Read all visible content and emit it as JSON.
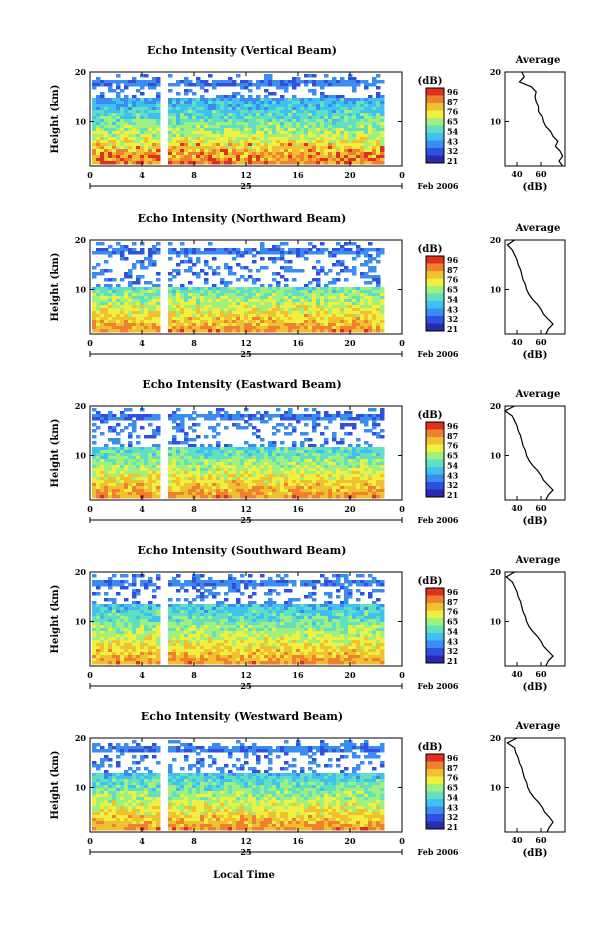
{
  "figure": {
    "x_axis_label": "Local Time",
    "date_label": "Feb 2006",
    "day_label": "25"
  },
  "colorbar": {
    "unit": "(dB)",
    "ticks": [
      "96",
      "87",
      "76",
      "65",
      "54",
      "43",
      "32",
      "21"
    ],
    "colors": [
      "#2a2ab0",
      "#3050e0",
      "#3a8cf0",
      "#40c0f0",
      "#60e0c0",
      "#a0f080",
      "#f0f040",
      "#f0c030",
      "#f08030",
      "#e03020"
    ]
  },
  "chart_data": [
    {
      "type": "heatmap",
      "title": "Echo Intensity (Vertical Beam)",
      "xlabel": "",
      "ylabel": "Height (km)",
      "x_ticks": [
        "0",
        "4",
        "8",
        "12",
        "16",
        "20",
        "0"
      ],
      "y_ticks": [
        "20",
        "10"
      ],
      "xlim": [
        0,
        24
      ],
      "ylim": [
        1,
        20
      ],
      "data_gap_hours": [
        5.4,
        5.7
      ],
      "echo_top_km": 15,
      "profile": {
        "title": "Average",
        "xlabel": "(dB)",
        "x_ticks": [
          "40",
          "60"
        ],
        "height_km": [
          20,
          19,
          18,
          17,
          16,
          15,
          14,
          13,
          12,
          11,
          10,
          9,
          8,
          7,
          6,
          5,
          4,
          3,
          2,
          1
        ],
        "values_db": [
          44,
          46,
          42,
          52,
          56,
          55,
          56,
          58,
          58,
          61,
          62,
          64,
          68,
          70,
          74,
          72,
          76,
          78,
          75,
          78
        ]
      }
    },
    {
      "type": "heatmap",
      "title": "Echo Intensity (Northward Beam)",
      "xlabel": "",
      "ylabel": "Height (km)",
      "x_ticks": [
        "0",
        "4",
        "8",
        "12",
        "16",
        "20",
        "0"
      ],
      "y_ticks": [
        "20",
        "10"
      ],
      "xlim": [
        0,
        24
      ],
      "ylim": [
        1,
        20
      ],
      "data_gap_hours": [
        5.4,
        5.7
      ],
      "echo_top_km": 11,
      "profile": {
        "title": "Average",
        "xlabel": "(dB)",
        "x_ticks": [
          "40",
          "60"
        ],
        "height_km": [
          20,
          19,
          18,
          17,
          16,
          15,
          14,
          13,
          12,
          11,
          10,
          9,
          8,
          7,
          6,
          5,
          4,
          3,
          2,
          1
        ],
        "values_db": [
          38,
          32,
          36,
          38,
          40,
          41,
          43,
          44,
          45,
          47,
          48,
          50,
          53,
          57,
          60,
          62,
          66,
          70,
          66,
          64
        ]
      }
    },
    {
      "type": "heatmap",
      "title": "Echo Intensity (Eastward Beam)",
      "xlabel": "",
      "ylabel": "Height (km)",
      "x_ticks": [
        "0",
        "4",
        "8",
        "12",
        "16",
        "20",
        "0"
      ],
      "y_ticks": [
        "20",
        "10"
      ],
      "xlim": [
        0,
        24
      ],
      "ylim": [
        1,
        20
      ],
      "data_gap_hours": [
        5.4,
        5.7
      ],
      "echo_top_km": 12,
      "profile": {
        "title": "Average",
        "xlabel": "(dB)",
        "x_ticks": [
          "40",
          "60"
        ],
        "height_km": [
          20,
          19,
          18,
          17,
          16,
          15,
          14,
          13,
          12,
          11,
          10,
          9,
          8,
          7,
          6,
          5,
          4,
          3,
          2,
          1
        ],
        "values_db": [
          38,
          30,
          36,
          38,
          40,
          41,
          43,
          44,
          45,
          47,
          48,
          50,
          53,
          57,
          60,
          62,
          66,
          70,
          66,
          64
        ]
      }
    },
    {
      "type": "heatmap",
      "title": "Echo Intensity (Southward Beam)",
      "xlabel": "",
      "ylabel": "Height (km)",
      "x_ticks": [
        "0",
        "4",
        "8",
        "12",
        "16",
        "20",
        "0"
      ],
      "y_ticks": [
        "20",
        "10"
      ],
      "xlim": [
        0,
        24
      ],
      "ylim": [
        1,
        20
      ],
      "data_gap_hours": [
        5.4,
        5.7
      ],
      "echo_top_km": 14,
      "profile": {
        "title": "Average",
        "xlabel": "(dB)",
        "x_ticks": [
          "40",
          "60"
        ],
        "height_km": [
          20,
          19,
          18,
          17,
          16,
          15,
          14,
          13,
          12,
          11,
          10,
          9,
          8,
          7,
          6,
          5,
          4,
          3,
          2,
          1
        ],
        "values_db": [
          38,
          31,
          36,
          38,
          40,
          41,
          43,
          44,
          45,
          47,
          48,
          50,
          53,
          57,
          60,
          62,
          66,
          70,
          66,
          64
        ]
      }
    },
    {
      "type": "heatmap",
      "title": "Echo Intensity (Westward Beam)",
      "xlabel": "Local Time",
      "ylabel": "Height (km)",
      "x_ticks": [
        "0",
        "4",
        "8",
        "12",
        "16",
        "20",
        "0"
      ],
      "y_ticks": [
        "20",
        "10"
      ],
      "xlim": [
        0,
        24
      ],
      "ylim": [
        1,
        20
      ],
      "data_gap_hours": [
        5.4,
        5.7
      ],
      "echo_top_km": 13,
      "profile": {
        "title": "Average",
        "xlabel": "(dB)",
        "x_ticks": [
          "40",
          "60"
        ],
        "height_km": [
          20,
          19,
          18,
          17,
          16,
          15,
          14,
          13,
          12,
          11,
          10,
          9,
          8,
          7,
          6,
          5,
          4,
          3,
          2,
          1
        ],
        "values_db": [
          40,
          32,
          38,
          39,
          41,
          42,
          44,
          45,
          46,
          48,
          49,
          51,
          54,
          58,
          61,
          63,
          67,
          70,
          67,
          65
        ]
      }
    }
  ]
}
